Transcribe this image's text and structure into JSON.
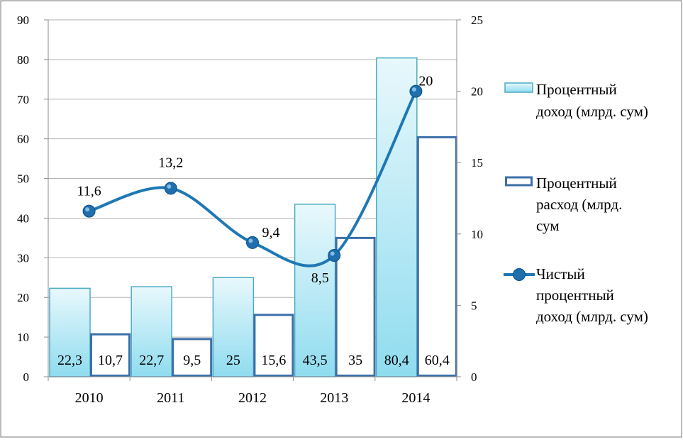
{
  "chart_data": {
    "type": "bar+line",
    "categories": [
      "2010",
      "2011",
      "2012",
      "2013",
      "2014"
    ],
    "series": [
      {
        "name": "Процентный доход (млрд. сум)",
        "legend_lines": [
          "Процентный",
          "доход (млрд. сум)"
        ],
        "kind": "bar",
        "axis": "left",
        "values": [
          22.3,
          22.7,
          25,
          43.5,
          80.4
        ],
        "labels": [
          "22,3",
          "22,7",
          "25",
          "43,5",
          "80,4"
        ]
      },
      {
        "name": "Процентный расход (млрд. сум",
        "legend_lines": [
          "Процентный",
          "расход (млрд.",
          "сум"
        ],
        "kind": "bar",
        "axis": "left",
        "values": [
          10.7,
          9.5,
          15.6,
          35,
          60.4
        ],
        "labels": [
          "10,7",
          "9,5",
          "15,6",
          "35",
          "60,4"
        ]
      },
      {
        "name": "Чистый процентный доход (млрд. сум)",
        "legend_lines": [
          "Чистый",
          "процентный",
          "доход (млрд. сум)"
        ],
        "kind": "line",
        "axis": "right",
        "values": [
          11.6,
          13.2,
          9.4,
          8.5,
          20
        ],
        "labels": [
          "11,6",
          "13,2",
          "9,4",
          "8,5",
          "20"
        ]
      }
    ],
    "y_left": {
      "min": 0,
      "max": 90,
      "ticks": [
        "0",
        "10",
        "20",
        "30",
        "40",
        "50",
        "60",
        "70",
        "80",
        "90"
      ]
    },
    "y_right": {
      "min": 0,
      "max": 25,
      "ticks": [
        "0",
        "5",
        "10",
        "15",
        "20",
        "25"
      ]
    },
    "grid": "horizontal",
    "legend": "right",
    "colors": {
      "bar1_fill_top": "#e8f8fc",
      "bar1_fill_bottom": "#8fdcef",
      "bar1_stroke": "#4bacc6",
      "bar2_fill": "#ffffff",
      "bar2_stroke": "#3c6fa8",
      "line": "#1f78b4",
      "marker": "#1f6fae",
      "grid": "#b3b3b3"
    }
  }
}
